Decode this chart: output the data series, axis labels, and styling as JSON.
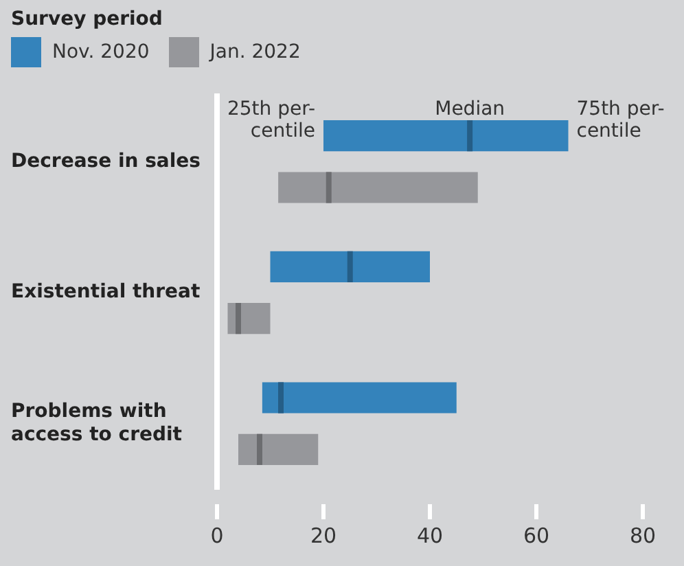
{
  "chart_data": {
    "type": "box",
    "orientation": "horizontal",
    "legend_title": "Survey period",
    "legend": "top left",
    "grid": false,
    "categories": [
      "Decrease in sales",
      "Existential threat",
      "Problems with access to credit"
    ],
    "series": [
      {
        "name": "Nov. 2020",
        "color": "#3483bb",
        "boxes": [
          {
            "low": 20,
            "q1": 20,
            "median": 47.5,
            "q3": 66,
            "high": 66
          },
          {
            "low": 10,
            "q1": 10,
            "median": 25,
            "q3": 40,
            "high": 40
          },
          {
            "low": 8.5,
            "q1": 8.5,
            "median": 12,
            "q3": 45,
            "high": 45
          }
        ]
      },
      {
        "name": "Jan. 2022",
        "color": "#96979b",
        "boxes": [
          {
            "low": 11.5,
            "q1": 11.5,
            "median": 21,
            "q3": 49,
            "high": 49
          },
          {
            "low": 2,
            "q1": 2,
            "median": 4,
            "q3": 10,
            "high": 10
          },
          {
            "low": 4,
            "q1": 4,
            "median": 8,
            "q3": 19,
            "high": 19
          }
        ]
      }
    ],
    "xlim": [
      0,
      80
    ],
    "xticks": [
      0,
      20,
      40,
      60,
      80
    ],
    "annotations": [
      "25th per-\ncentile",
      "Median",
      "75th per-\ncentile"
    ]
  }
}
